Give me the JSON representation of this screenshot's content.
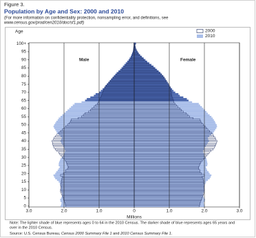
{
  "chart_data": {
    "type": "pyramid",
    "figure_label": "Figure 3.",
    "title": "Population by Age and Sex: 2000 and 2010",
    "subtitle": [
      "(For more information on confidentiality protection, nonsampling error, and definitions, see",
      "www.census.gov/prod/cen2010/doc/sf1.pdf)"
    ],
    "y_label": "Age",
    "x_label": "Millions",
    "left_label": "Male",
    "right_label": "Female",
    "note": [
      "Note: The lighter shade of blue represents ages 0 to 64 in the 2010 Census. The darker shade of blue represents ages 65 years and",
      "over in the 2010 Census."
    ],
    "source": [
      "Source: U.S. Census Bureau, ",
      "Census 2000 Summary File 1",
      " and ",
      "2010 Census Summary File 1",
      "."
    ],
    "categories": [
      "0",
      null,
      null,
      null,
      null,
      "5",
      null,
      null,
      null,
      null,
      "10",
      null,
      null,
      null,
      null,
      "15",
      null,
      null,
      null,
      null,
      "20",
      null,
      null,
      null,
      null,
      "25",
      null,
      null,
      null,
      null,
      "30",
      null,
      null,
      null,
      null,
      "35",
      null,
      null,
      null,
      null,
      "40",
      null,
      null,
      null,
      null,
      "45",
      null,
      null,
      null,
      null,
      "50",
      null,
      null,
      null,
      null,
      "55",
      null,
      null,
      null,
      null,
      "60",
      null,
      null,
      null,
      null,
      "65",
      null,
      null,
      null,
      null,
      "70",
      null,
      null,
      null,
      null,
      "75",
      null,
      null,
      null,
      null,
      "80",
      null,
      null,
      null,
      null,
      "85",
      null,
      null,
      null,
      null,
      "90",
      null,
      null,
      null,
      null,
      "95",
      null,
      null,
      null,
      null,
      "100+"
    ],
    "xlim": [
      0,
      3
    ],
    "xticks": [
      0,
      {
        "value": 1,
        "label": "1.0"
      },
      {
        "value": 2,
        "label": "2.0"
      },
      {
        "value": 3,
        "label": "3.0"
      }
    ],
    "grid": true,
    "series": [
      {
        "name": "2000",
        "color": "#ffffff",
        "stroke": "#1c2a5e",
        "male": [
          1.95,
          1.96,
          1.97,
          1.99,
          2.01,
          2.02,
          2.04,
          2.06,
          2.08,
          2.1,
          2.1,
          2.09,
          2.09,
          2.1,
          2.08,
          2.08,
          2.07,
          2.06,
          2.04,
          2.1,
          2.02,
          1.96,
          1.95,
          1.9,
          1.88,
          1.9,
          1.92,
          1.93,
          1.96,
          2.0,
          2.05,
          2.08,
          2.12,
          2.15,
          2.2,
          2.25,
          2.28,
          2.3,
          2.32,
          2.33,
          2.34,
          2.3,
          2.28,
          2.24,
          2.2,
          2.15,
          2.1,
          2.05,
          2.0,
          1.95,
          1.9,
          1.85,
          1.82,
          1.8,
          1.6,
          1.5,
          1.45,
          1.4,
          1.3,
          1.25,
          1.2,
          1.15,
          1.1,
          1.05,
          1.02,
          1.0,
          0.98,
          0.95,
          0.93,
          0.92,
          0.9,
          0.88,
          0.86,
          0.84,
          0.8,
          0.76,
          0.72,
          0.68,
          0.64,
          0.6,
          0.55,
          0.5,
          0.45,
          0.4,
          0.35,
          0.3,
          0.26,
          0.22,
          0.18,
          0.15,
          0.12,
          0.09,
          0.07,
          0.05,
          0.04,
          0.03,
          0.02,
          0.02,
          0.01,
          0.01,
          0.01
        ],
        "female": [
          1.86,
          1.87,
          1.88,
          1.9,
          1.92,
          1.93,
          1.95,
          1.97,
          1.99,
          2.0,
          2.0,
          1.99,
          1.99,
          2.0,
          1.98,
          1.98,
          1.97,
          1.96,
          1.94,
          2.0,
          1.92,
          1.88,
          1.87,
          1.84,
          1.83,
          1.86,
          1.88,
          1.9,
          1.94,
          1.98,
          2.03,
          2.06,
          2.1,
          2.14,
          2.19,
          2.25,
          2.28,
          2.31,
          2.33,
          2.35,
          2.36,
          2.33,
          2.31,
          2.27,
          2.24,
          2.2,
          2.15,
          2.1,
          2.06,
          2.02,
          1.97,
          1.93,
          1.9,
          1.88,
          1.68,
          1.58,
          1.53,
          1.48,
          1.4,
          1.35,
          1.3,
          1.25,
          1.2,
          1.16,
          1.13,
          1.12,
          1.1,
          1.08,
          1.07,
          1.06,
          1.06,
          1.05,
          1.04,
          1.03,
          1.0,
          0.98,
          0.95,
          0.92,
          0.89,
          0.86,
          0.82,
          0.77,
          0.72,
          0.66,
          0.6,
          0.55,
          0.49,
          0.43,
          0.37,
          0.32,
          0.27,
          0.22,
          0.18,
          0.14,
          0.11,
          0.08,
          0.06,
          0.04,
          0.03,
          0.02,
          0.04
        ]
      },
      {
        "name": "2010",
        "colors": [
          "#a9bee9",
          "#a9bee9",
          "#a9bee9",
          "#a9bee9",
          "#a9bee9",
          "#a9bee9",
          "#a9bee9",
          "#a9bee9",
          "#a9bee9",
          "#a9bee9",
          "#a9bee9",
          "#a9bee9",
          "#a9bee9",
          "#a9bee9",
          "#a9bee9",
          "#a9bee9",
          "#a9bee9",
          "#a9bee9",
          "#a9bee9",
          "#a9bee9",
          "#a9bee9",
          "#a9bee9",
          "#a9bee9",
          "#a9bee9",
          "#a9bee9",
          "#a9bee9",
          "#a9bee9",
          "#a9bee9",
          "#a9bee9",
          "#a9bee9",
          "#a9bee9",
          "#a9bee9",
          "#a9bee9",
          "#a9bee9",
          "#a9bee9",
          "#a9bee9",
          "#a9bee9",
          "#a9bee9",
          "#a9bee9",
          "#a9bee9",
          "#a9bee9",
          "#a9bee9",
          "#a9bee9",
          "#a9bee9",
          "#a9bee9",
          "#a9bee9",
          "#a9bee9",
          "#a9bee9",
          "#a9bee9",
          "#a9bee9",
          "#a9bee9",
          "#a9bee9",
          "#a9bee9",
          "#a9bee9",
          "#a9bee9",
          "#a9bee9",
          "#a9bee9",
          "#a9bee9",
          "#a9bee9",
          "#a9bee9",
          "#a9bee9",
          "#a9bee9",
          "#a9bee9",
          "#a9bee9",
          "#a9bee9",
          "#4a66ad",
          "#4a66ad",
          "#4a66ad",
          "#4a66ad",
          "#4a66ad",
          "#4a66ad",
          "#4a66ad",
          "#4a66ad",
          "#4a66ad",
          "#4a66ad",
          "#4a66ad",
          "#4a66ad",
          "#4a66ad",
          "#4a66ad",
          "#4a66ad",
          "#4a66ad",
          "#4a66ad",
          "#4a66ad",
          "#4a66ad",
          "#4a66ad",
          "#4a66ad",
          "#4a66ad",
          "#4a66ad",
          "#4a66ad",
          "#4a66ad",
          "#4a66ad",
          "#4a66ad",
          "#4a66ad",
          "#4a66ad",
          "#4a66ad",
          "#4a66ad",
          "#4a66ad",
          "#4a66ad",
          "#4a66ad",
          "#4a66ad",
          "#4a66ad"
        ],
        "male": [
          2.1,
          2.08,
          2.07,
          2.1,
          2.11,
          2.08,
          2.06,
          2.05,
          2.06,
          2.08,
          2.1,
          2.08,
          2.09,
          2.1,
          2.12,
          2.15,
          2.2,
          2.25,
          2.28,
          2.3,
          2.25,
          2.22,
          2.18,
          2.15,
          2.12,
          2.15,
          2.15,
          2.14,
          2.12,
          2.1,
          2.05,
          2.02,
          2.0,
          1.98,
          1.96,
          1.98,
          2.0,
          2.02,
          2.05,
          2.08,
          2.1,
          2.08,
          2.06,
          2.1,
          2.15,
          2.2,
          2.22,
          2.25,
          2.28,
          2.3,
          2.28,
          2.25,
          2.22,
          2.18,
          2.15,
          2.1,
          2.05,
          2.0,
          1.95,
          1.9,
          1.85,
          1.8,
          1.75,
          1.7,
          1.5,
          1.4,
          1.35,
          1.25,
          1.15,
          1.1,
          1.0,
          0.95,
          0.9,
          0.85,
          0.82,
          0.78,
          0.74,
          0.7,
          0.66,
          0.62,
          0.58,
          0.54,
          0.5,
          0.45,
          0.4,
          0.36,
          0.32,
          0.28,
          0.24,
          0.2,
          0.16,
          0.13,
          0.1,
          0.08,
          0.06,
          0.04,
          0.03,
          0.02,
          0.02,
          0.01,
          0.01
        ],
        "female": [
          2.01,
          1.99,
          1.98,
          2.01,
          2.02,
          1.99,
          1.97,
          1.96,
          1.97,
          1.99,
          2.01,
          1.99,
          2.0,
          2.01,
          2.03,
          2.05,
          2.1,
          2.15,
          2.18,
          2.2,
          2.15,
          2.12,
          2.08,
          2.06,
          2.04,
          2.08,
          2.09,
          2.08,
          2.07,
          2.06,
          2.02,
          2.0,
          1.99,
          1.97,
          1.96,
          1.99,
          2.01,
          2.04,
          2.07,
          2.1,
          2.13,
          2.11,
          2.1,
          2.14,
          2.2,
          2.25,
          2.28,
          2.31,
          2.34,
          2.36,
          2.35,
          2.32,
          2.3,
          2.27,
          2.24,
          2.2,
          2.15,
          2.1,
          2.06,
          2.02,
          1.97,
          1.93,
          1.88,
          1.84,
          1.65,
          1.55,
          1.5,
          1.4,
          1.3,
          1.26,
          1.17,
          1.12,
          1.08,
          1.04,
          1.01,
          0.98,
          0.95,
          0.92,
          0.89,
          0.86,
          0.83,
          0.79,
          0.75,
          0.7,
          0.65,
          0.6,
          0.55,
          0.49,
          0.43,
          0.37,
          0.32,
          0.27,
          0.22,
          0.17,
          0.13,
          0.1,
          0.07,
          0.05,
          0.04,
          0.03,
          0.05
        ]
      }
    ]
  }
}
